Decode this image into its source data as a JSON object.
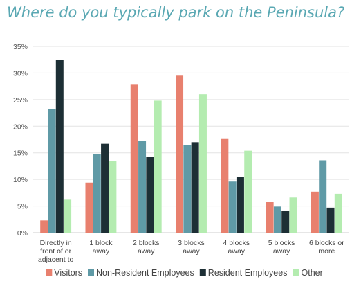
{
  "title": "Where do you typically park on the Peninsula?",
  "chart_data": {
    "type": "bar",
    "title": "Where do you typically park on the Peninsula?",
    "categories": [
      [
        "Directly in",
        "front of or",
        "adjacent to"
      ],
      [
        "1 block",
        "away"
      ],
      [
        "2 blocks",
        "away"
      ],
      [
        "3 blocks",
        "away"
      ],
      [
        "4 blocks",
        "away"
      ],
      [
        "5 blocks",
        "away"
      ],
      [
        "6 blocks or",
        "more"
      ]
    ],
    "y_ticks": [
      "0%",
      "5%",
      "10%",
      "15%",
      "20%",
      "25%",
      "30%",
      "35%"
    ],
    "ylim": [
      0,
      35
    ],
    "grid": true,
    "legend_position": "bottom",
    "series": [
      {
        "name": "Visitors",
        "color": "#e8806e",
        "values": [
          2.3,
          9.4,
          27.8,
          29.5,
          17.6,
          5.8,
          7.7
        ]
      },
      {
        "name": "Non-Resident Employees",
        "color": "#5f9aa6",
        "values": [
          23.2,
          14.8,
          17.3,
          16.4,
          9.6,
          4.9,
          13.6
        ]
      },
      {
        "name": "Resident Employees",
        "color": "#1d2f35",
        "values": [
          32.5,
          16.7,
          14.3,
          17.0,
          10.5,
          4.1,
          4.7
        ]
      },
      {
        "name": "Other",
        "color": "#b4ecb0",
        "values": [
          6.2,
          13.4,
          24.8,
          26.0,
          15.4,
          6.6,
          7.3
        ]
      }
    ]
  }
}
